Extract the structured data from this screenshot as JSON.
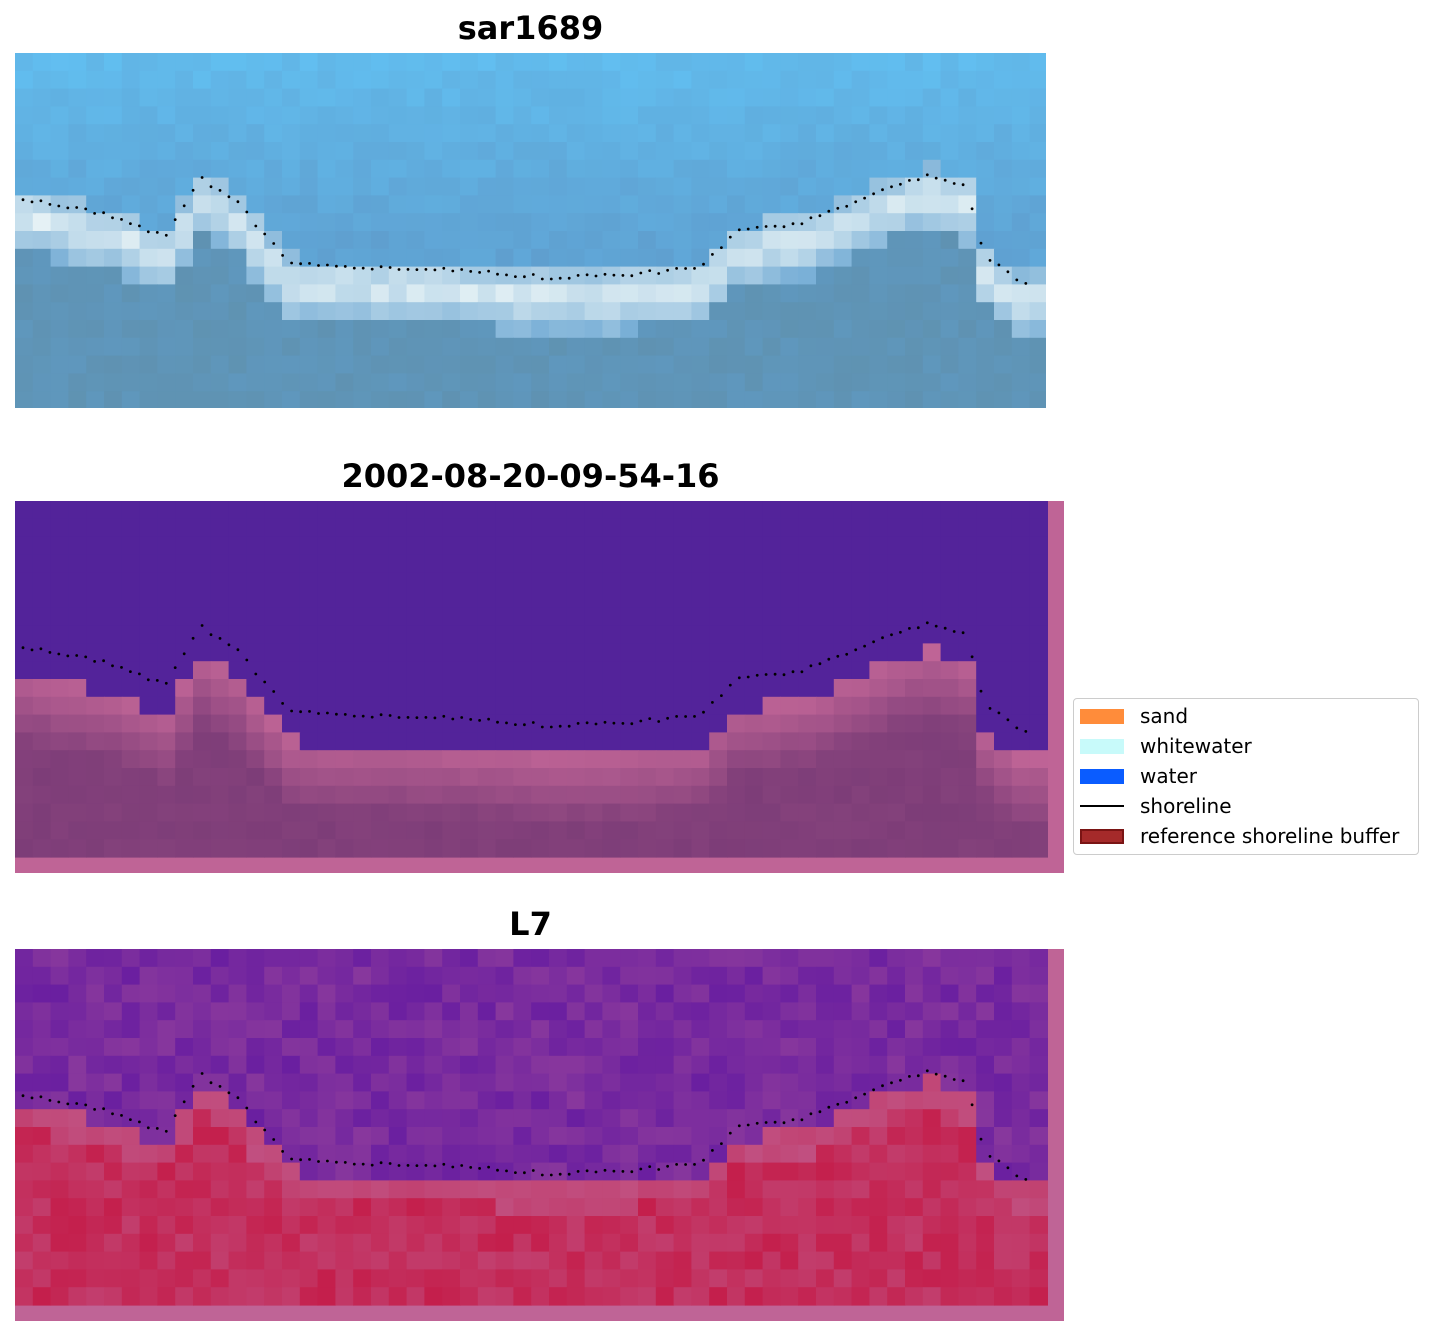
{
  "panels": [
    {
      "title": "sar1689"
    },
    {
      "title": "2002-08-20-09-54-16"
    },
    {
      "title": "L7"
    }
  ],
  "legend": {
    "items": [
      {
        "label": "sand",
        "color": "#ff8c3a"
      },
      {
        "label": "whitewater",
        "color": "#c8fafa"
      },
      {
        "label": "water",
        "color": "#0a5cff"
      },
      {
        "label": "shoreline",
        "color": "#000000"
      },
      {
        "label": "reference shoreline buffer",
        "color": "#a52a2a"
      }
    ]
  },
  "colors": {
    "rgb_sky": "#62c4f6",
    "rgb_water": "#5f9fcf",
    "rgb_surf": "#e6f2f5",
    "rgb_sand": "#5f8ea8",
    "class_water": "#53239a",
    "class_land": "#7d3d78",
    "class_buffer": "#bf6496",
    "index_water": "#6a1fa0",
    "index_land": "#c41f4c",
    "shoreline_points": "#000000"
  }
}
